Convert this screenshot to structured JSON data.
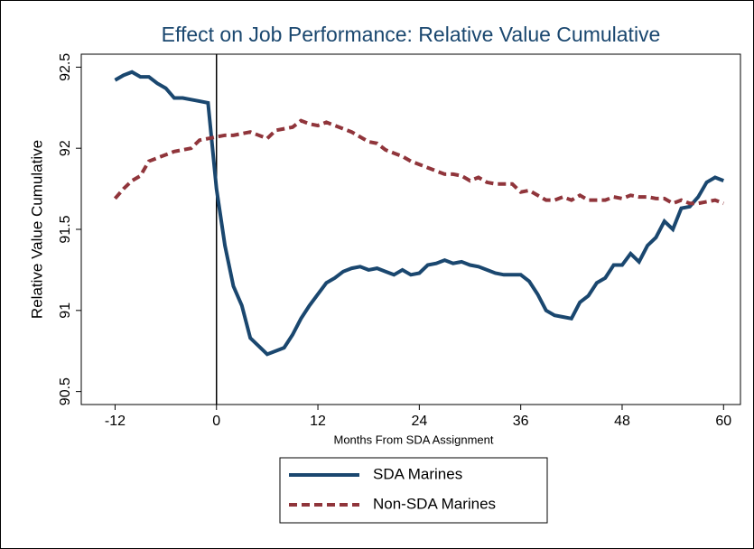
{
  "chart_data": {
    "type": "line",
    "title": "Effect on Job Performance: Relative Value Cumulative",
    "x_label": "Months From SDA Assignment",
    "y_label": "Relative Value Cumulative",
    "x": [
      -12,
      -11,
      -10,
      -9,
      -8,
      -7,
      -6,
      -5,
      -4,
      -3,
      -2,
      -1,
      0,
      1,
      2,
      3,
      4,
      5,
      6,
      7,
      8,
      9,
      10,
      11,
      12,
      13,
      14,
      15,
      16,
      17,
      18,
      19,
      20,
      21,
      22,
      23,
      24,
      25,
      26,
      27,
      28,
      29,
      30,
      31,
      32,
      33,
      34,
      35,
      36,
      37,
      38,
      39,
      40,
      41,
      42,
      43,
      44,
      45,
      46,
      47,
      48,
      49,
      50,
      51,
      52,
      53,
      54,
      55,
      56,
      57,
      58,
      59,
      60
    ],
    "series": [
      {
        "name": "SDA Marines",
        "color": "#1a476f",
        "dash": false,
        "values": [
          92.42,
          92.45,
          92.47,
          92.44,
          92.44,
          92.4,
          92.37,
          92.31,
          92.31,
          92.3,
          92.29,
          92.28,
          91.75,
          91.4,
          91.15,
          91.03,
          90.83,
          90.78,
          90.73,
          90.75,
          90.77,
          90.85,
          90.95,
          91.03,
          91.1,
          91.17,
          91.2,
          91.24,
          91.26,
          91.27,
          91.25,
          91.26,
          91.24,
          91.22,
          91.25,
          91.22,
          91.23,
          91.28,
          91.29,
          91.31,
          91.29,
          91.3,
          91.28,
          91.27,
          91.25,
          91.23,
          91.22,
          91.22,
          91.22,
          91.18,
          91.1,
          91.0,
          90.97,
          90.96,
          90.95,
          91.05,
          91.09,
          91.17,
          91.2,
          91.28,
          91.28,
          91.35,
          91.3,
          91.4,
          91.45,
          91.55,
          91.5,
          91.63,
          91.64,
          91.7,
          91.79,
          91.82,
          91.8
        ]
      },
      {
        "name": "Non-SDA Marines",
        "color": "#90353b",
        "dash": true,
        "values": [
          91.69,
          91.75,
          91.8,
          91.83,
          91.92,
          91.94,
          91.96,
          91.98,
          91.99,
          92.0,
          92.05,
          92.06,
          92.07,
          92.08,
          92.08,
          92.09,
          92.1,
          92.08,
          92.06,
          92.11,
          92.12,
          92.13,
          92.17,
          92.15,
          92.14,
          92.16,
          92.14,
          92.12,
          92.1,
          92.07,
          92.04,
          92.03,
          91.99,
          91.97,
          91.95,
          91.92,
          91.9,
          91.88,
          91.86,
          91.84,
          91.84,
          91.83,
          91.8,
          91.82,
          91.79,
          91.78,
          91.78,
          91.78,
          91.73,
          91.74,
          91.71,
          91.68,
          91.68,
          91.7,
          91.68,
          91.71,
          91.68,
          91.68,
          91.68,
          91.7,
          91.69,
          91.71,
          91.7,
          91.7,
          91.69,
          91.69,
          91.66,
          91.68,
          91.66,
          91.66,
          91.67,
          91.68,
          91.66
        ]
      }
    ],
    "xlim": [
      -16,
      62
    ],
    "xticks": [
      -12,
      0,
      12,
      24,
      36,
      48,
      60
    ],
    "ylim": [
      90.42,
      92.58
    ],
    "yticks": [
      90.5,
      91,
      91.5,
      92,
      92.5
    ],
    "xline": 0,
    "grid": false,
    "legend": "bottom"
  }
}
